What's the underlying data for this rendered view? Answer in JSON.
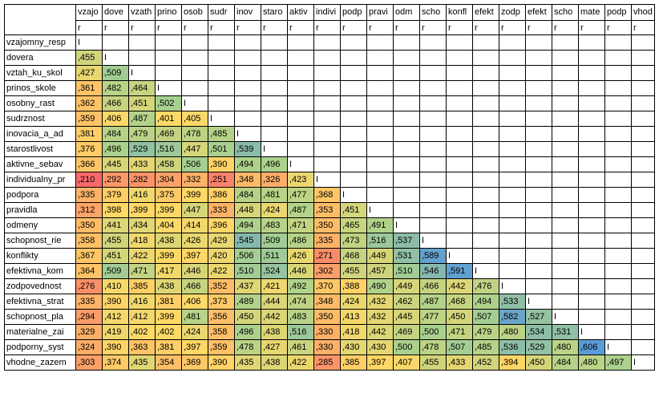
{
  "columns": [
    "vzajo",
    "dove",
    "vzath",
    "prino",
    "osob",
    "sudr",
    "inov",
    "staro",
    "aktiv",
    "indivi",
    "podp",
    "pravi",
    "odm",
    "scho",
    "konfl",
    "efekt",
    "zodp",
    "efekt",
    "scho",
    "mate",
    "podp",
    "vhod"
  ],
  "subheader": "r",
  "diag_mark": "I",
  "rows": [
    {
      "label": "vzajomny_resp",
      "values": []
    },
    {
      "label": "dovera",
      "values": [
        ",455"
      ]
    },
    {
      "label": "vztah_ku_skol",
      "values": [
        ",427",
        ",509"
      ]
    },
    {
      "label": "prinos_skole",
      "values": [
        ",361",
        ",482",
        ",464"
      ]
    },
    {
      "label": "osobny_rast",
      "values": [
        ",362",
        ",466",
        ",451",
        ",502"
      ]
    },
    {
      "label": "sudrznost",
      "values": [
        ",359",
        ",406",
        ",487",
        ",401",
        ",405"
      ]
    },
    {
      "label": "inovacia_a_ad",
      "values": [
        ",381",
        ",484",
        ",479",
        ",469",
        ",478",
        ",485"
      ]
    },
    {
      "label": "starostlivost",
      "values": [
        ",376",
        ",496",
        ",529",
        ",516",
        ",447",
        ",501",
        ",539"
      ]
    },
    {
      "label": "aktivne_sebav",
      "values": [
        ",366",
        ",445",
        ",433",
        ",458",
        ",506",
        ",390",
        ",494",
        ",496"
      ]
    },
    {
      "label": "individualny_pr",
      "values": [
        ",210",
        ",292",
        ",282",
        ",304",
        ",332",
        ",251",
        ",348",
        ",326",
        ",423"
      ]
    },
    {
      "label": "podpora",
      "values": [
        ",335",
        ",379",
        ",416",
        ",375",
        ",399",
        ",386",
        ",484",
        ",481",
        ",477",
        ",368"
      ]
    },
    {
      "label": "pravidla",
      "values": [
        ",312",
        ",398",
        ",399",
        ",399",
        ",447",
        ",333",
        ",448",
        ",424",
        ",487",
        ",353",
        ",451"
      ]
    },
    {
      "label": "odmeny",
      "values": [
        ",350",
        ",441",
        ",434",
        ",404",
        ",414",
        ",396",
        ",494",
        ",483",
        ",471",
        ",350",
        ",465",
        ",491"
      ]
    },
    {
      "label": "schopnost_rie",
      "values": [
        ",358",
        ",455",
        ",418",
        ",438",
        ",426",
        ",429",
        ",545",
        ",509",
        ",486",
        ",335",
        ",473",
        ",516",
        ",537"
      ]
    },
    {
      "label": "konflikty",
      "values": [
        ",367",
        ",451",
        ",422",
        ",399",
        ",397",
        ",420",
        ",506",
        ",511",
        ",426",
        ",271",
        ",468",
        ",449",
        ",531",
        ",589"
      ]
    },
    {
      "label": "efektivna_kom",
      "values": [
        ",364",
        ",509",
        ",471",
        ",417",
        ",446",
        ",422",
        ",510",
        ",524",
        ",446",
        ",302",
        ",455",
        ",457",
        ",510",
        ",546",
        ",591"
      ]
    },
    {
      "label": "zodpovednost",
      "values": [
        ",276",
        ",410",
        ",385",
        ",438",
        ",466",
        ",352",
        ",437",
        ",421",
        ",492",
        ",370",
        ",388",
        ",490",
        ",449",
        ",466",
        ",442",
        ",476"
      ]
    },
    {
      "label": "efektivna_strat",
      "values": [
        ",335",
        ",390",
        ",416",
        ",381",
        ",406",
        ",373",
        ",489",
        ",444",
        ",474",
        ",348",
        ",424",
        ",432",
        ",462",
        ",487",
        ",468",
        ",494",
        ",533"
      ]
    },
    {
      "label": "schopnost_pla",
      "values": [
        ",294",
        ",412",
        ",412",
        ",399",
        ",481",
        ",356",
        ",450",
        ",442",
        ",483",
        ",350",
        ",413",
        ",432",
        ",445",
        ",477",
        ",450",
        ",507",
        ",582",
        ",527"
      ]
    },
    {
      "label": "materialne_zai",
      "values": [
        ",329",
        ",419",
        ",402",
        ",402",
        ",424",
        ",358",
        ",496",
        ",438",
        ",516",
        ",330",
        ",418",
        ",442",
        ",469",
        ",500",
        ",471",
        ",479",
        ",480",
        ",534",
        ",531"
      ]
    },
    {
      "label": "podporny_syst",
      "values": [
        ",324",
        ",390",
        ",363",
        ",381",
        ",397",
        ",359",
        ",478",
        ",427",
        ",461",
        ",330",
        ",430",
        ",430",
        ",500",
        ",478",
        ",507",
        ",485",
        ",536",
        ",529",
        ",480",
        ",606"
      ]
    },
    {
      "label": "vhodne_zazem",
      "values": [
        ",303",
        ",374",
        ",435",
        ",354",
        ",369",
        ",390",
        ",435",
        ",438",
        ",422",
        ",285",
        ",385",
        ",397",
        ",407",
        ",455",
        ",433",
        ",452",
        ",394",
        ",450",
        ",484",
        ",480",
        ",497"
      ]
    }
  ],
  "palette": {
    "stops": [
      {
        "at": 0.21,
        "color": "#f8696b"
      },
      {
        "at": 0.4,
        "color": "#ffd966"
      },
      {
        "at": 0.5,
        "color": "#a9d18e"
      },
      {
        "at": 0.6,
        "color": "#5b9bd5"
      }
    ]
  }
}
